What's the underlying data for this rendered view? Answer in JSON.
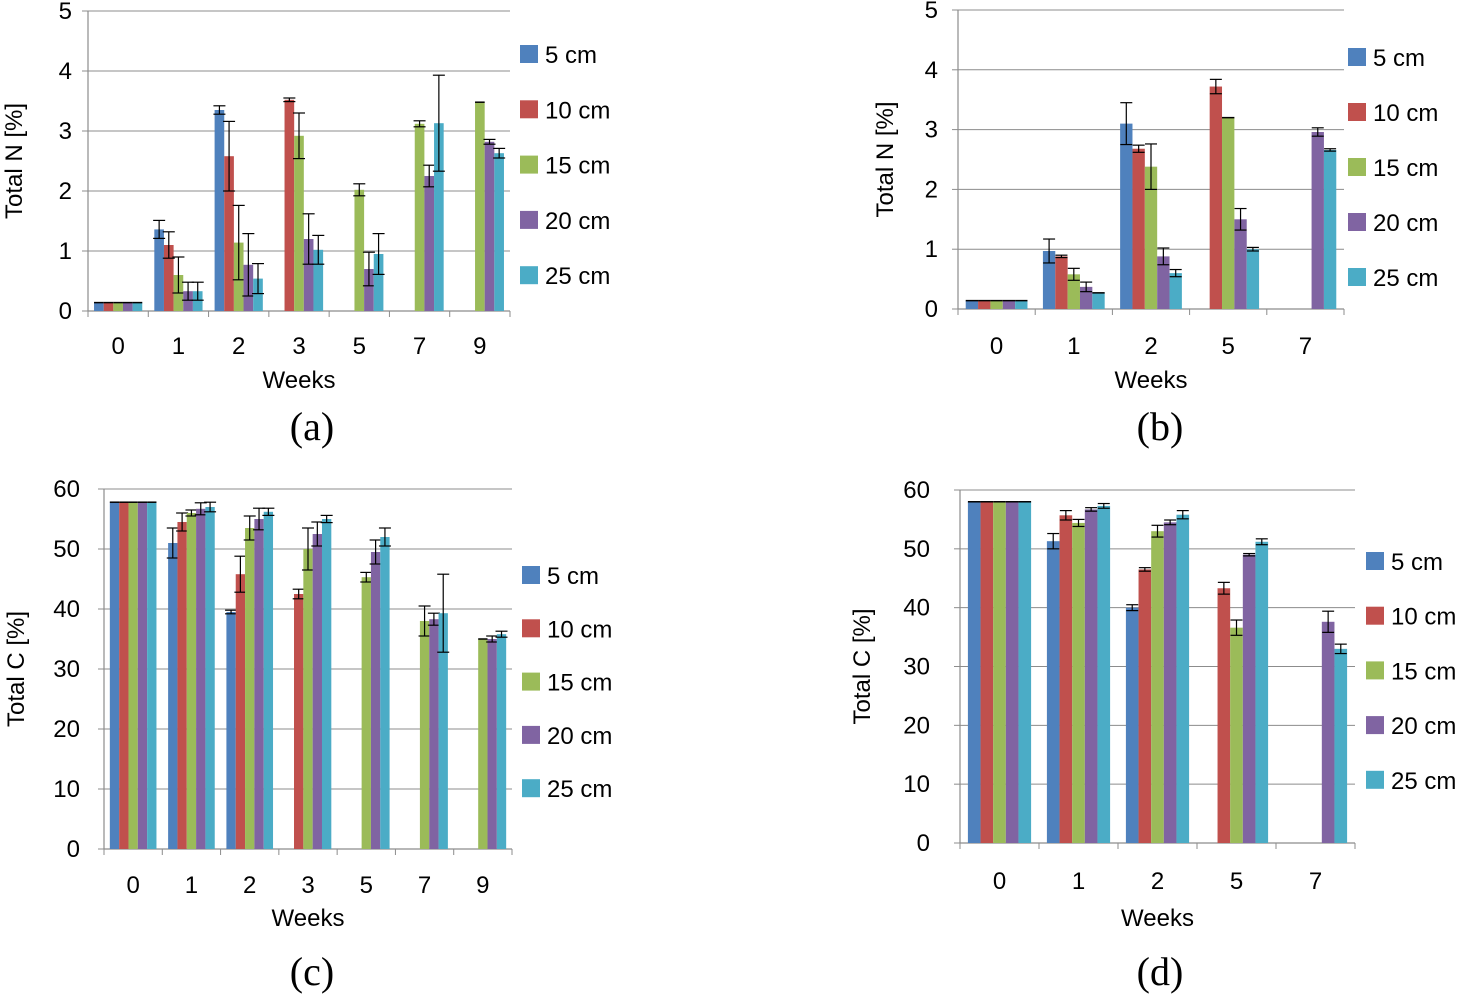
{
  "series_colors": [
    "#4f81bd",
    "#c0504d",
    "#9bbb59",
    "#8064a2",
    "#4bacc6"
  ],
  "chart_data": [
    {
      "type": "bar",
      "panel_label": "(a)",
      "xlabel": "Weeks",
      "ylabel": "Total N [%]",
      "ylim": [
        0,
        5
      ],
      "yticks": [
        0,
        1,
        2,
        3,
        4,
        5
      ],
      "grid": true,
      "legend_position": "right",
      "categories": [
        "0",
        "1",
        "2",
        "3",
        "5",
        "7",
        "9"
      ],
      "series": [
        {
          "name": "5 cm",
          "values": [
            0.14,
            1.36,
            3.35,
            null,
            null,
            null,
            null
          ],
          "errors": [
            0,
            0.15,
            0.07,
            0,
            0,
            0,
            0
          ]
        },
        {
          "name": "10 cm",
          "values": [
            0.14,
            1.1,
            2.58,
            3.52,
            null,
            null,
            null
          ],
          "errors": [
            0,
            0.22,
            0.58,
            0.03,
            0,
            0,
            0
          ]
        },
        {
          "name": "15 cm",
          "values": [
            0.14,
            0.6,
            1.14,
            2.92,
            2.02,
            3.12,
            3.48
          ],
          "errors": [
            0,
            0.3,
            0.62,
            0.38,
            0.1,
            0.05,
            0
          ]
        },
        {
          "name": "20 cm",
          "values": [
            0.14,
            0.33,
            0.77,
            1.2,
            0.7,
            2.25,
            2.82
          ],
          "errors": [
            0,
            0.15,
            0.52,
            0.42,
            0.28,
            0.18,
            0.04
          ]
        },
        {
          "name": "25 cm",
          "values": [
            0.14,
            0.33,
            0.54,
            1.02,
            0.95,
            3.13,
            2.63
          ],
          "errors": [
            0,
            0.15,
            0.25,
            0.24,
            0.34,
            0.8,
            0.08
          ]
        }
      ]
    },
    {
      "type": "bar",
      "panel_label": "(b)",
      "xlabel": "Weeks",
      "ylabel": "Total N [%]",
      "ylim": [
        0,
        5
      ],
      "yticks": [
        0,
        1,
        2,
        3,
        4,
        5
      ],
      "grid": true,
      "legend_position": "right",
      "categories": [
        "0",
        "1",
        "2",
        "5",
        "7"
      ],
      "series": [
        {
          "name": "5 cm",
          "values": [
            0.14,
            0.97,
            3.1,
            null,
            null
          ],
          "errors": [
            0,
            0.2,
            0.35,
            0,
            0
          ]
        },
        {
          "name": "10 cm",
          "values": [
            0.14,
            0.88,
            2.68,
            3.72,
            null
          ],
          "errors": [
            0,
            0.02,
            0.06,
            0.12,
            0
          ]
        },
        {
          "name": "15 cm",
          "values": [
            0.14,
            0.58,
            2.38,
            3.2,
            null
          ],
          "errors": [
            0,
            0.1,
            0.38,
            0,
            0
          ]
        },
        {
          "name": "20 cm",
          "values": [
            0.14,
            0.37,
            0.88,
            1.5,
            2.96
          ],
          "errors": [
            0,
            0.08,
            0.14,
            0.18,
            0.07
          ]
        },
        {
          "name": "25 cm",
          "values": [
            0.14,
            0.27,
            0.6,
            1.0,
            2.66
          ],
          "errors": [
            0,
            0,
            0.06,
            0.03,
            0.02
          ]
        }
      ]
    },
    {
      "type": "bar",
      "panel_label": "(c)",
      "xlabel": "Weeks",
      "ylabel": "Total C [%]",
      "ylim": [
        0,
        60
      ],
      "yticks": [
        0,
        10,
        20,
        30,
        40,
        50,
        60
      ],
      "grid": true,
      "legend_position": "right",
      "categories": [
        "0",
        "1",
        "2",
        "3",
        "5",
        "7",
        "9"
      ],
      "series": [
        {
          "name": "5 cm",
          "values": [
            57.8,
            51.0,
            39.5,
            null,
            null,
            null,
            null
          ],
          "errors": [
            0,
            2.5,
            0.3,
            0,
            0,
            0,
            0
          ]
        },
        {
          "name": "10 cm",
          "values": [
            57.8,
            54.5,
            45.8,
            42.5,
            null,
            null,
            null
          ],
          "errors": [
            0,
            1.5,
            3.0,
            0.8,
            0,
            0,
            0
          ]
        },
        {
          "name": "15 cm",
          "values": [
            57.8,
            56.0,
            53.5,
            50.0,
            45.3,
            38.0,
            35.0
          ],
          "errors": [
            0,
            0.5,
            2.0,
            3.5,
            0.8,
            2.5,
            0
          ]
        },
        {
          "name": "20 cm",
          "values": [
            57.8,
            56.7,
            55.0,
            52.5,
            49.5,
            38.3,
            35.0
          ],
          "errors": [
            0,
            1.0,
            1.8,
            2.0,
            2.0,
            1.0,
            0.5
          ]
        },
        {
          "name": "25 cm",
          "values": [
            57.8,
            57.0,
            56.2,
            55.0,
            52.0,
            39.3,
            35.8
          ],
          "errors": [
            0,
            0.8,
            0.6,
            0.6,
            1.5,
            6.5,
            0.5
          ]
        }
      ]
    },
    {
      "type": "bar",
      "panel_label": "(d)",
      "xlabel": "Weeks",
      "ylabel": "Total C [%]",
      "ylim": [
        0,
        60
      ],
      "yticks": [
        0,
        10,
        20,
        30,
        40,
        50,
        60
      ],
      "grid": true,
      "legend_position": "right",
      "categories": [
        "0",
        "1",
        "2",
        "5",
        "7"
      ],
      "series": [
        {
          "name": "5 cm",
          "values": [
            58.0,
            51.3,
            40.0,
            null,
            null
          ],
          "errors": [
            0,
            1.3,
            0.5,
            0,
            0
          ]
        },
        {
          "name": "10 cm",
          "values": [
            58.0,
            55.7,
            46.5,
            43.3,
            null
          ],
          "errors": [
            0,
            0.8,
            0.3,
            1.0,
            0
          ]
        },
        {
          "name": "15 cm",
          "values": [
            58.0,
            54.4,
            53.0,
            36.6,
            null
          ],
          "errors": [
            0,
            0.6,
            1.0,
            1.3,
            0
          ]
        },
        {
          "name": "20 cm",
          "values": [
            58.0,
            56.7,
            54.5,
            49.0,
            37.6
          ],
          "errors": [
            0,
            0.3,
            0.4,
            0.2,
            1.8
          ]
        },
        {
          "name": "25 cm",
          "values": [
            58.0,
            57.3,
            55.8,
            51.2,
            33.0
          ],
          "errors": [
            0,
            0.4,
            0.7,
            0.5,
            0.8
          ]
        }
      ]
    }
  ]
}
